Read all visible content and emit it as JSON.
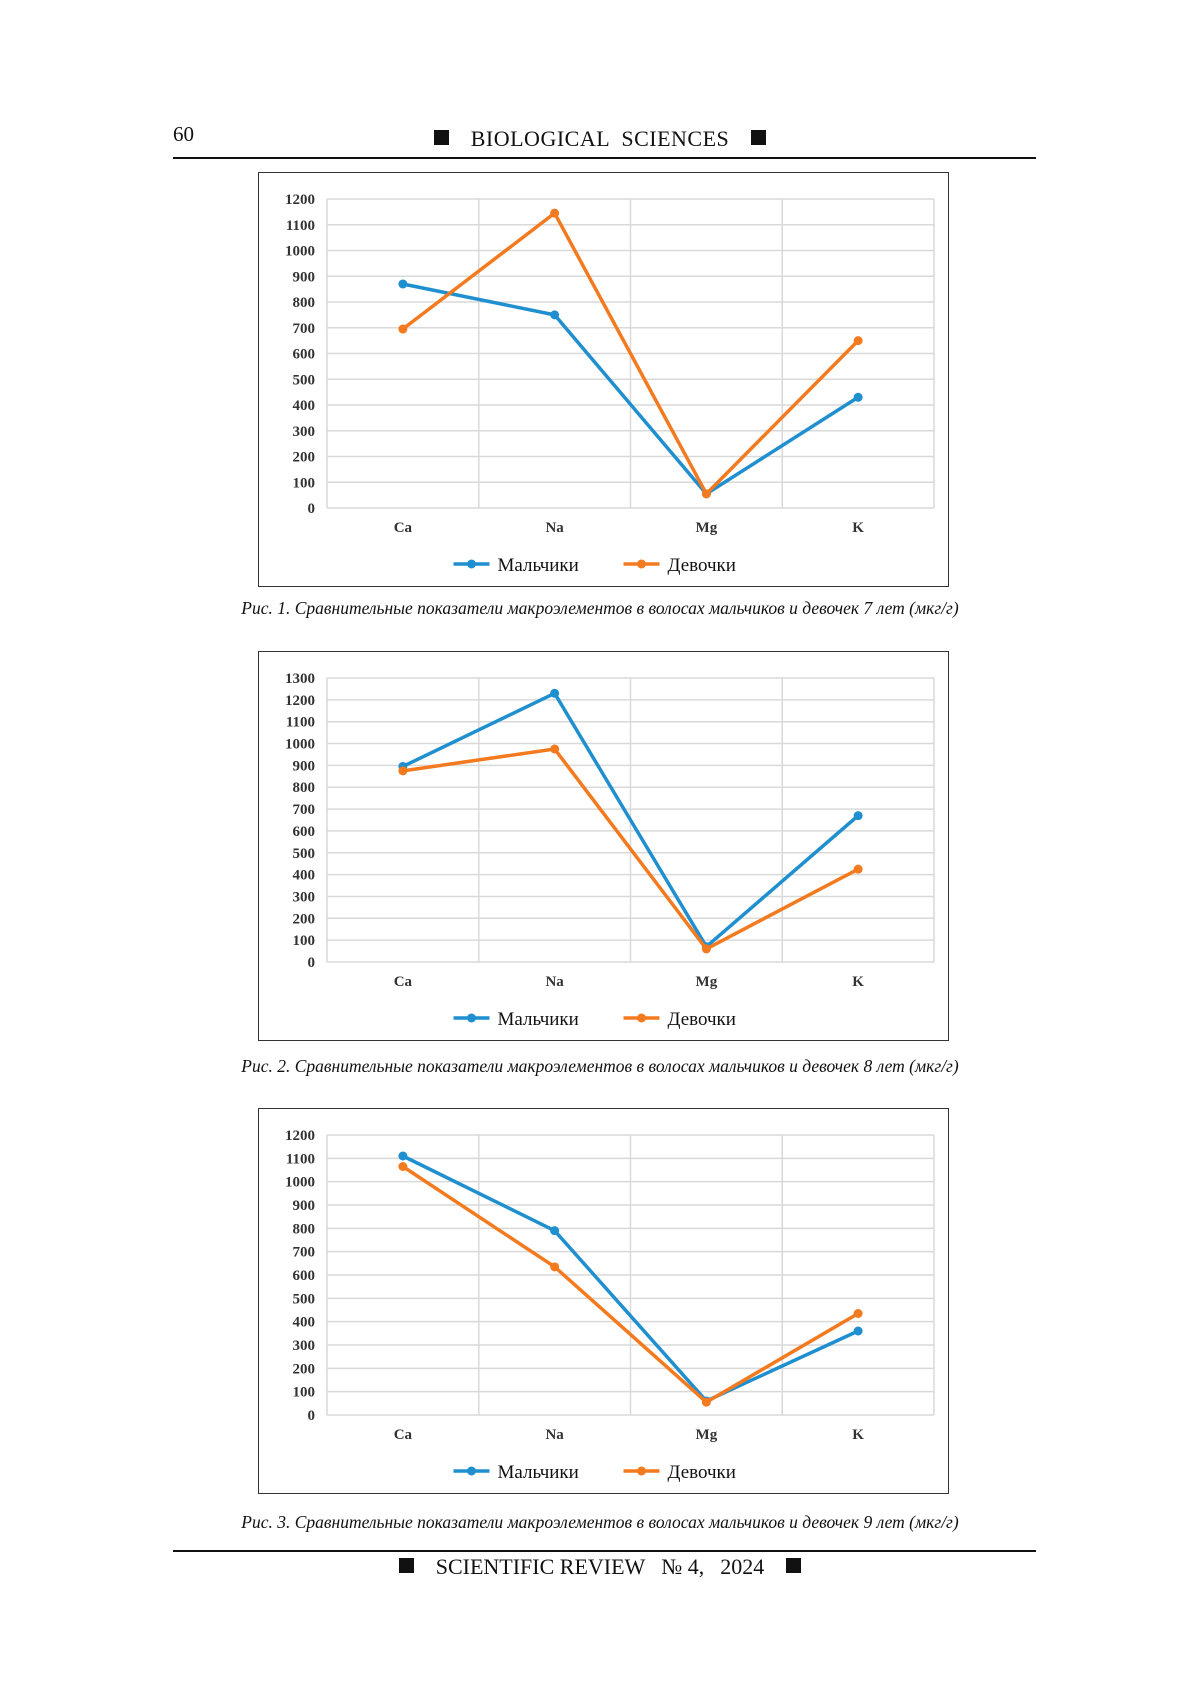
{
  "header": {
    "page_number": "60",
    "journal_section": "BIOLOGICAL  SCIENCES"
  },
  "footer": {
    "journal": "SCIENTIFIC REVIEW",
    "issue": "№ 4,",
    "year": "2024"
  },
  "colors": {
    "boys": "#1f8fcf",
    "girls": "#f47a20",
    "grid": "#d9d9d9"
  },
  "figures": [
    {
      "caption": "Рис. 1. Сравнительные показатели макроэлементов в волосах мальчиков и девочек 7 лет (мкг/г)"
    },
    {
      "caption": "Рис. 2. Сравнительные показатели макроэлементов в волосах мальчиков и девочек 8 лет (мкг/г)"
    },
    {
      "caption": "Рис. 3. Сравнительные показатели макроэлементов в волосах мальчиков и девочек 9 лет (мкг/г)"
    }
  ],
  "chart_data": [
    {
      "type": "line",
      "title": "",
      "categories": [
        "Ca",
        "Na",
        "Mg",
        "K"
      ],
      "ylim": [
        0,
        1200
      ],
      "ystep": 100,
      "grid": true,
      "legend": "bottom",
      "series": [
        {
          "name": "Мальчики",
          "values": [
            870,
            750,
            55,
            430
          ]
        },
        {
          "name": "Девочки",
          "values": [
            695,
            1145,
            55,
            650
          ]
        }
      ]
    },
    {
      "type": "line",
      "title": "",
      "categories": [
        "Ca",
        "Na",
        "Mg",
        "K"
      ],
      "ylim": [
        0,
        1300
      ],
      "ystep": 100,
      "grid": true,
      "legend": "bottom",
      "series": [
        {
          "name": "Мальчики",
          "values": [
            895,
            1230,
            70,
            670
          ]
        },
        {
          "name": "Девочки",
          "values": [
            875,
            975,
            60,
            425
          ]
        }
      ]
    },
    {
      "type": "line",
      "title": "",
      "categories": [
        "Ca",
        "Na",
        "Mg",
        "K"
      ],
      "ylim": [
        0,
        1200
      ],
      "ystep": 100,
      "grid": true,
      "legend": "bottom",
      "series": [
        {
          "name": "Мальчики",
          "values": [
            1110,
            790,
            60,
            360
          ]
        },
        {
          "name": "Девочки",
          "values": [
            1065,
            635,
            55,
            435
          ]
        }
      ]
    }
  ]
}
